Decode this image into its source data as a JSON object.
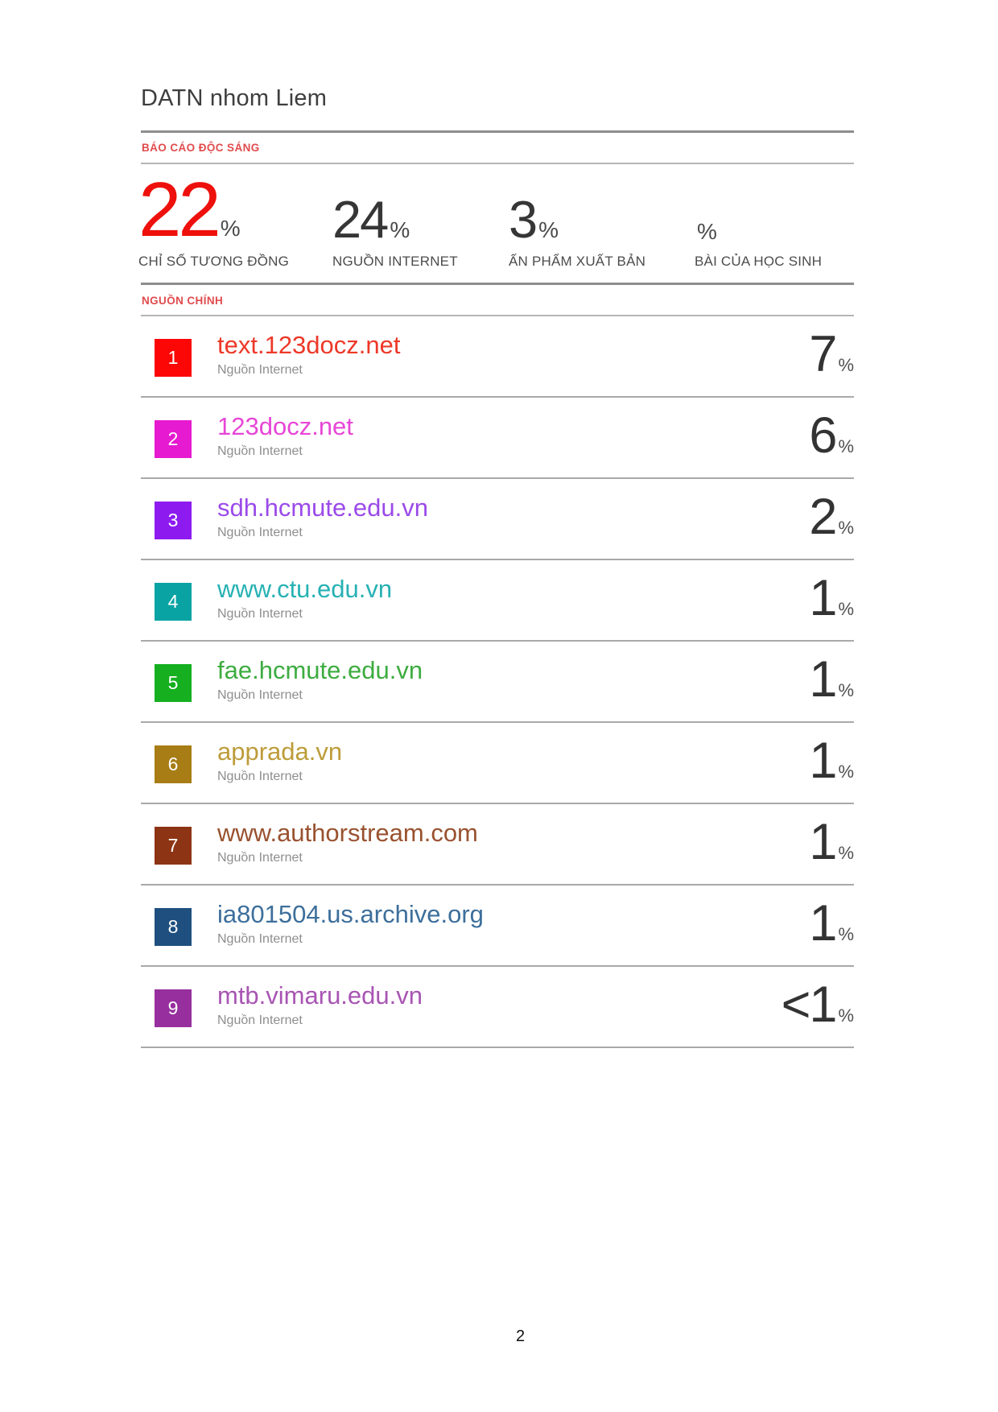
{
  "page": {
    "title": "DATN nhom Liem",
    "page_number": "2"
  },
  "report": {
    "header": "BÁO CÁO ĐỘC SÁNG",
    "header_color": "#e14b4d",
    "stats": [
      {
        "value": "22",
        "unit": "%",
        "label": "CHỈ SỐ TƯƠNG ĐỒNG",
        "value_color": "#ee100c"
      },
      {
        "value": "24",
        "unit": "%",
        "label": "NGUỒN INTERNET",
        "value_color": "#363636"
      },
      {
        "value": "3",
        "unit": "%",
        "label": "ẤN PHẨM XUẤT BẢN",
        "value_color": "#363636"
      },
      {
        "value": "",
        "unit": "%",
        "label": "BÀI CỦA HỌC SINH",
        "value_color": "#363636"
      }
    ]
  },
  "sources": {
    "header": "NGUỒN CHÍNH",
    "items": [
      {
        "index": "1",
        "name": "text.123docz.net",
        "type": "Nguồn Internet",
        "value": "7",
        "unit": "%",
        "badge_color": "#fc0606",
        "link_color": "#ed3828"
      },
      {
        "index": "2",
        "name": "123docz.net",
        "type": "Nguồn Internet",
        "value": "6",
        "unit": "%",
        "badge_color": "#e61ad0",
        "link_color": "#e746d6"
      },
      {
        "index": "3",
        "name": "sdh.hcmute.edu.vn",
        "type": "Nguồn Internet",
        "value": "2",
        "unit": "%",
        "badge_color": "#8d1bf0",
        "link_color": "#9b4ae9"
      },
      {
        "index": "4",
        "name": "www.ctu.edu.vn",
        "type": "Nguồn Internet",
        "value": "1",
        "unit": "%",
        "badge_color": "#09a3a3",
        "link_color": "#27b1b3"
      },
      {
        "index": "5",
        "name": "fae.hcmute.edu.vn",
        "type": "Nguồn Internet",
        "value": "1",
        "unit": "%",
        "badge_color": "#15af20",
        "link_color": "#3dac40"
      },
      {
        "index": "6",
        "name": "apprada.vn",
        "type": "Nguồn Internet",
        "value": "1",
        "unit": "%",
        "badge_color": "#a87d15",
        "link_color": "#bd9c3a"
      },
      {
        "index": "7",
        "name": "www.authorstream.com",
        "type": "Nguồn Internet",
        "value": "1",
        "unit": "%",
        "badge_color": "#8d3414",
        "link_color": "#99522f"
      },
      {
        "index": "8",
        "name": "ia801504.us.archive.org",
        "type": "Nguồn Internet",
        "value": "1",
        "unit": "%",
        "badge_color": "#1e4f7f",
        "link_color": "#3d6f9b"
      },
      {
        "index": "9",
        "name": "mtb.vimaru.edu.vn",
        "type": "Nguồn Internet",
        "value": "<1",
        "unit": "%",
        "badge_color": "#97309e",
        "link_color": "#a855b3"
      }
    ]
  }
}
